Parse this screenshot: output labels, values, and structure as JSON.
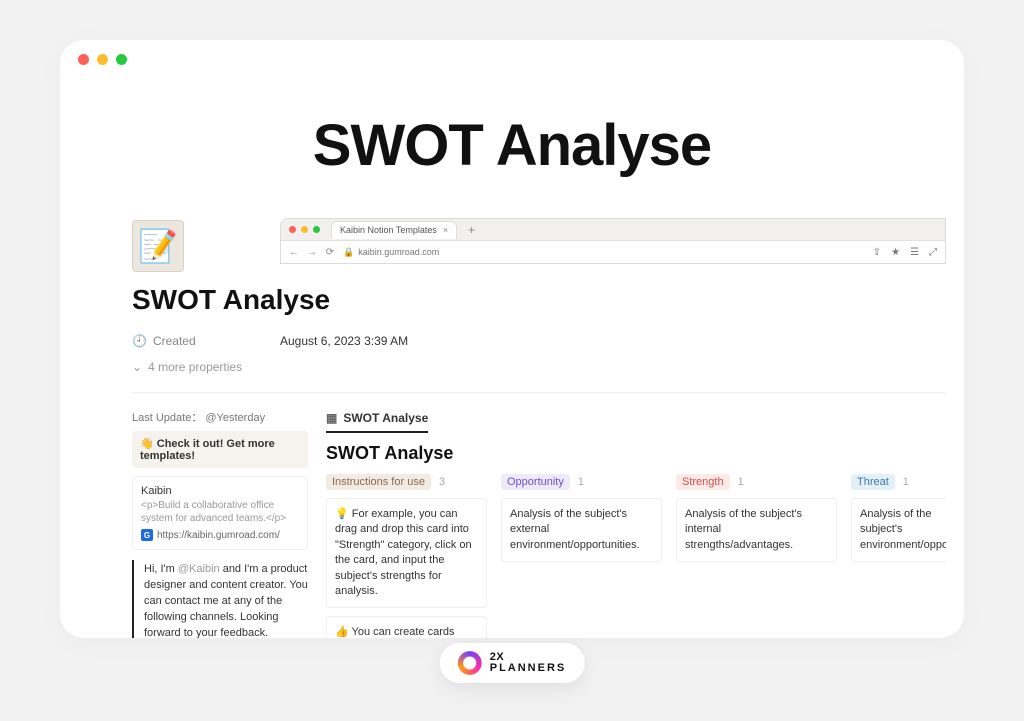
{
  "window": {
    "traffic_colors": {
      "red": "#ff5f57",
      "yellow": "#febc2e",
      "green": "#28c840"
    }
  },
  "heading": "SWOT Analyse",
  "hero": {
    "icon": "📝",
    "mini_browser": {
      "tab_label": "Kaibin Notion Templates",
      "tab_close": "×",
      "plus": "+",
      "address": "kaibin.gumroad.com"
    }
  },
  "page": {
    "title": "SWOT Analyse",
    "created_label": "Created",
    "created_value": "August 6, 2023 3:39 AM",
    "more_properties": "4 more properties"
  },
  "side": {
    "last_update_label": "Last Update：",
    "last_update_value": "@Yesterday",
    "callout_emoji": "👋",
    "callout_text": "Check it out! Get more templates!",
    "bookmark": {
      "title": "Kaibin",
      "desc": "<p>Build a collaborative office system for advanced teams.</p>",
      "url": "https://kaibin.gumroad.com/"
    },
    "quote_pre": "Hi, I'm ",
    "quote_mention": "@Kaibin",
    "quote_post": " and I'm a product designer and content creator. You can contact me at any of the following channels. Looking forward to your feedback."
  },
  "board": {
    "tab_label": "SWOT Analyse",
    "title": "SWOT Analyse",
    "columns": [
      {
        "tag": "Instructions for use",
        "tag_bg": "#f1ebe4",
        "tag_color": "#8a6b4a",
        "count": "3",
        "cards": [
          "💡 For example, you can drag and drop this card into \"Strength\" category, click on the card, and input the subject's strengths for analysis.",
          "👍 You can create cards under S, W, O, and T, respectively, and fill in the analysis content. This way, you can"
        ]
      },
      {
        "tag": "Opportunity",
        "tag_bg": "#eee9fb",
        "tag_color": "#6b52c9",
        "count": "1",
        "cards": [
          "Analysis of the subject's external environment/opportunities."
        ]
      },
      {
        "tag": "Strength",
        "tag_bg": "#fde9e6",
        "tag_color": "#c9524d",
        "count": "1",
        "cards": [
          "Analysis of the subject's internal strengths/advantages."
        ]
      },
      {
        "tag": "Threat",
        "tag_bg": "#e4f0f8",
        "tag_color": "#3d77a8",
        "count": "1",
        "cards": [
          "Analysis of the subject's environment/oppor"
        ]
      }
    ]
  },
  "logo": {
    "line1": "2X",
    "line2": "PLANNERS"
  }
}
